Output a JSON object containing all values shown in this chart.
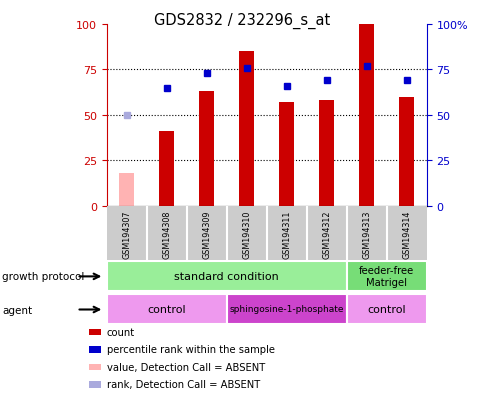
{
  "title": "GDS2832 / 232296_s_at",
  "samples": [
    "GSM194307",
    "GSM194308",
    "GSM194309",
    "GSM194310",
    "GSM194311",
    "GSM194312",
    "GSM194313",
    "GSM194314"
  ],
  "bar_values": [
    18,
    41,
    63,
    85,
    57,
    58,
    100,
    60
  ],
  "bar_absent": [
    true,
    false,
    false,
    false,
    false,
    false,
    false,
    false
  ],
  "rank_values": [
    50,
    65,
    73,
    76,
    66,
    69,
    77,
    69
  ],
  "rank_absent": [
    true,
    false,
    false,
    false,
    false,
    false,
    false,
    false
  ],
  "ylim": [
    0,
    100
  ],
  "growth_protocol": {
    "standard": [
      0,
      6
    ],
    "feeder_free": [
      6,
      8
    ]
  },
  "agent": {
    "control1": [
      0,
      3
    ],
    "sphingosine": [
      3,
      6
    ],
    "control2": [
      6,
      8
    ]
  },
  "colors": {
    "bar_normal": "#cc0000",
    "bar_absent": "#ffb3b3",
    "rank_normal": "#0000cc",
    "rank_absent": "#aaaadd",
    "growth_standard": "#99ee99",
    "growth_feeder": "#77dd77",
    "agent_control": "#ee99ee",
    "agent_sphingosine": "#cc44cc",
    "xticklabel_bg": "#cccccc",
    "left_axis": "#cc0000",
    "right_axis": "#0000cc"
  },
  "legend_items": [
    {
      "color": "#cc0000",
      "label": "count"
    },
    {
      "color": "#0000cc",
      "label": "percentile rank within the sample"
    },
    {
      "color": "#ffb3b3",
      "label": "value, Detection Call = ABSENT"
    },
    {
      "color": "#aaaadd",
      "label": "rank, Detection Call = ABSENT"
    }
  ]
}
